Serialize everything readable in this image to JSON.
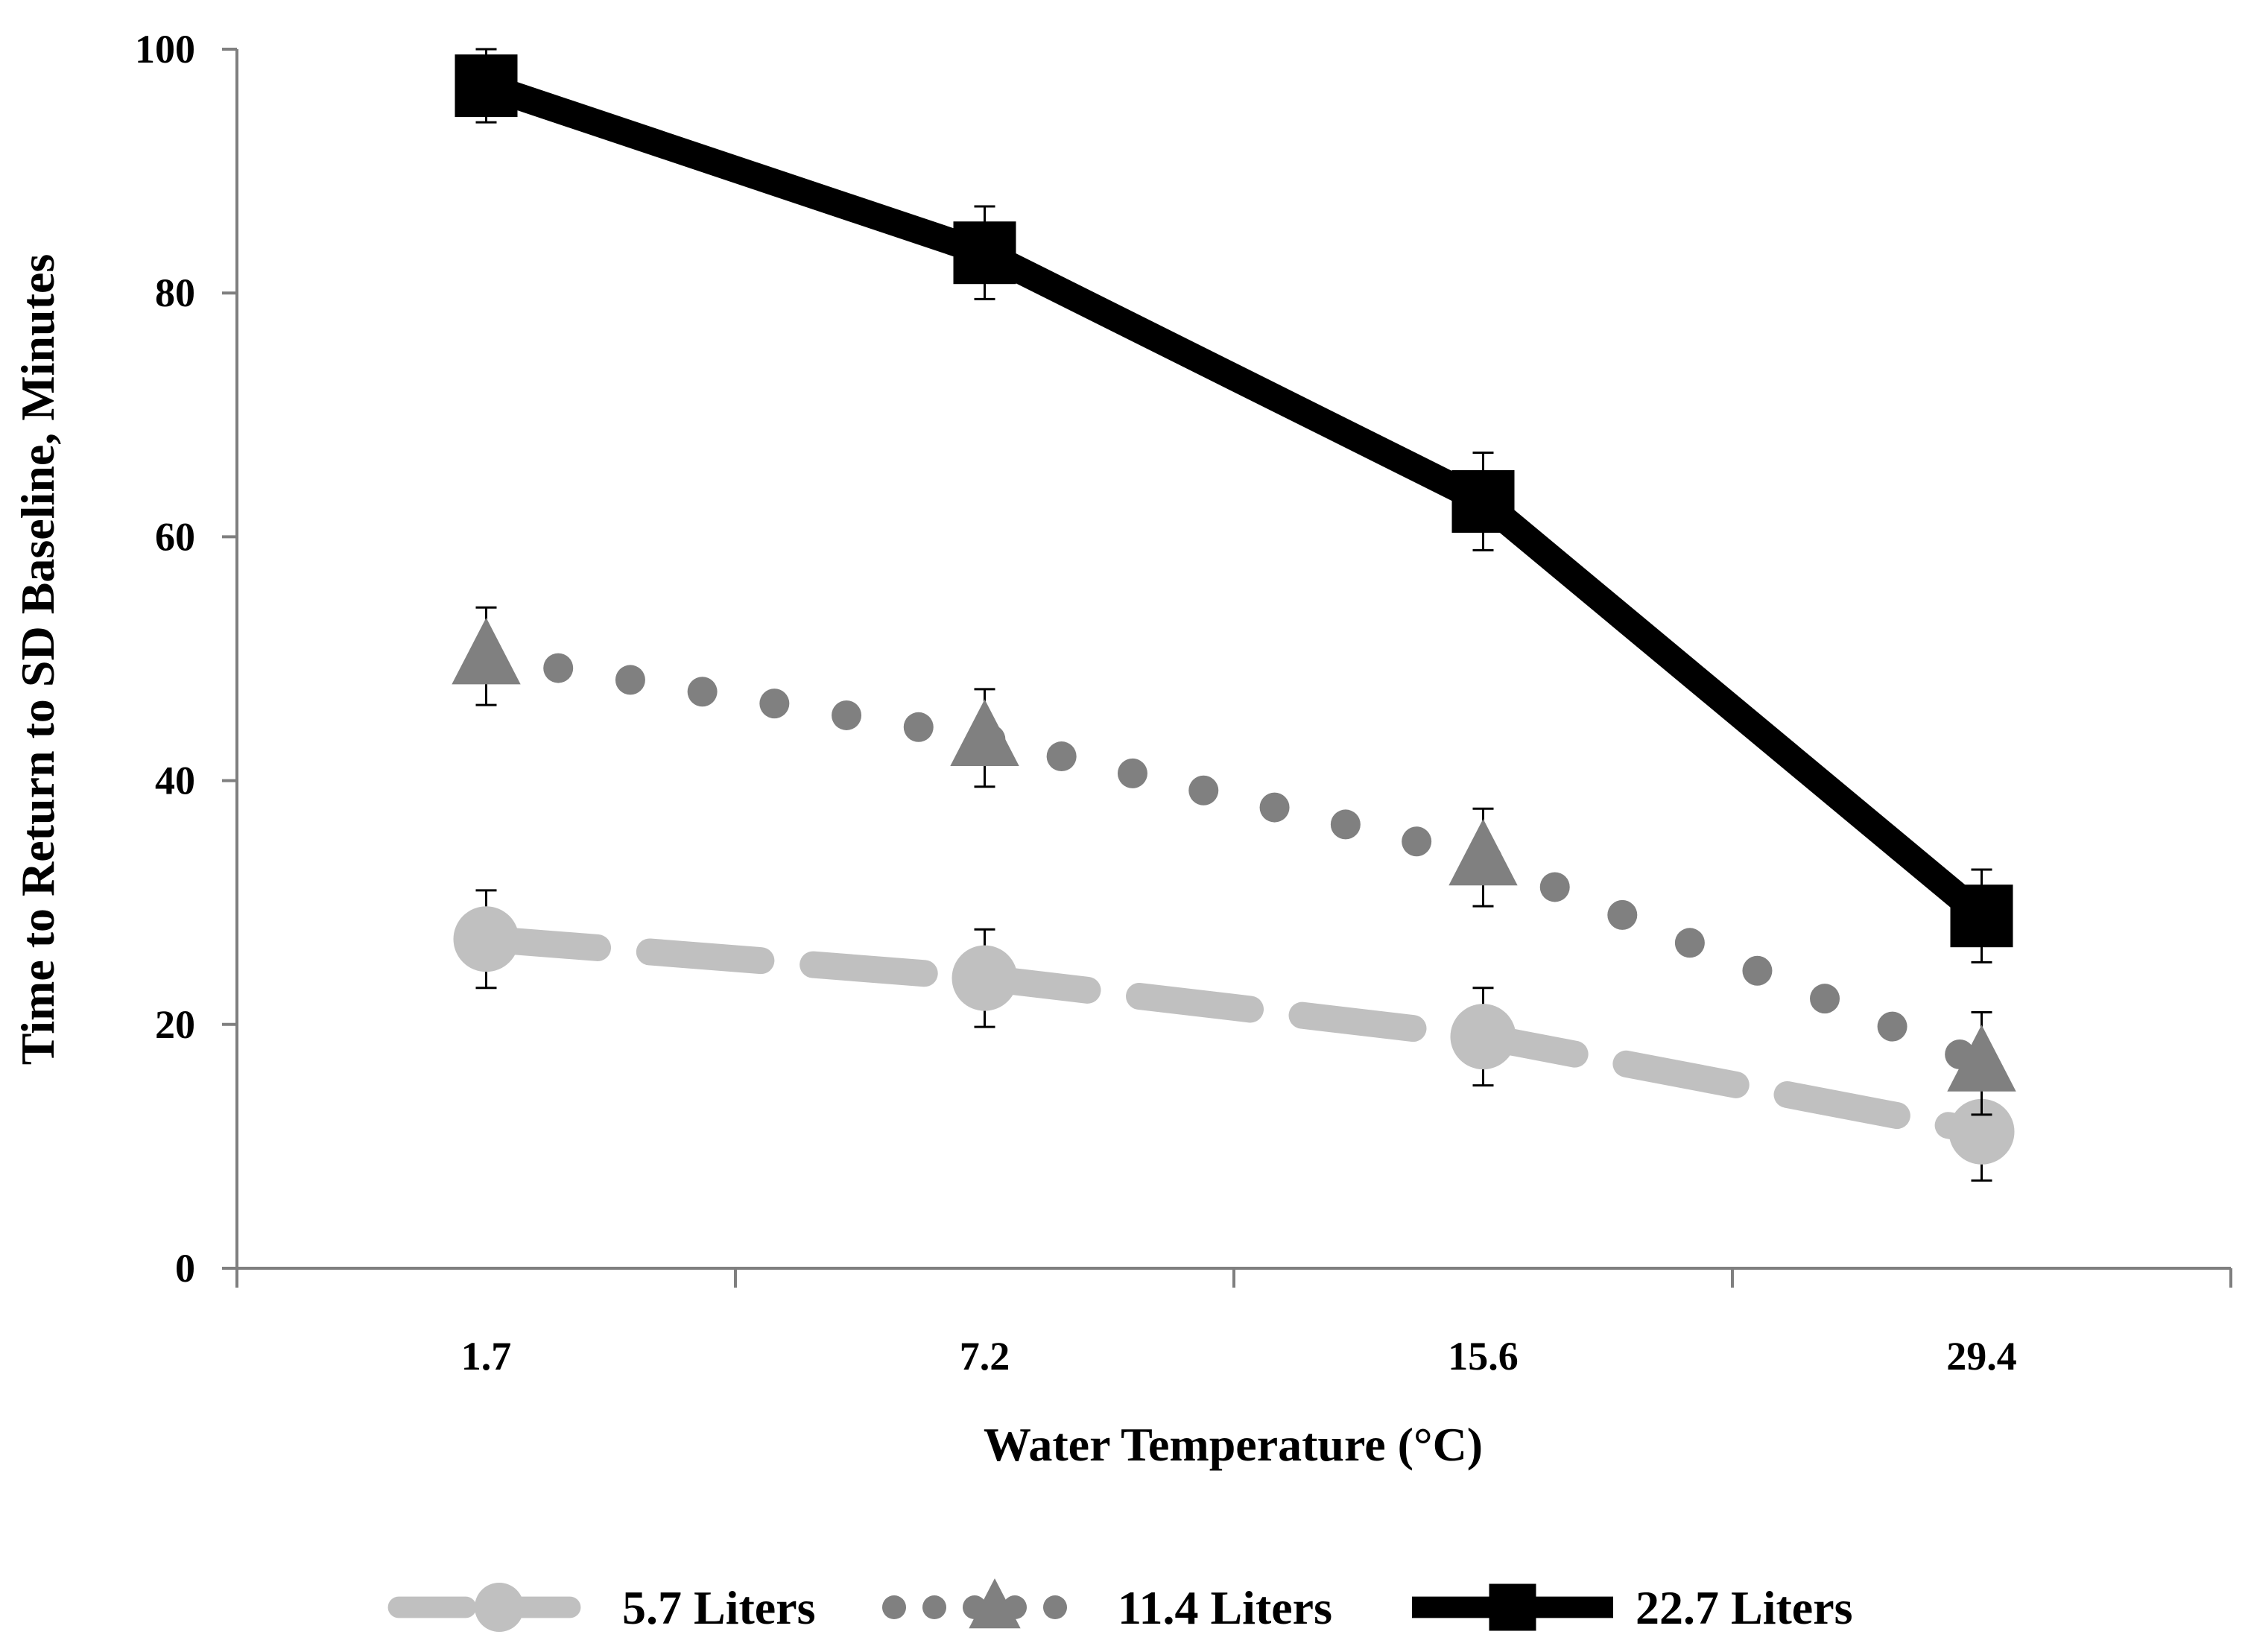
{
  "chart_data": {
    "type": "line",
    "categories": [
      "1.7",
      "7.2",
      "15.6",
      "29.4"
    ],
    "xlabel": "Water Temperature (°C)",
    "ylabel": "Time to Return to SD Baseline, Minutes",
    "ylim": [
      0,
      100
    ],
    "yticks": [
      "0",
      "20",
      "40",
      "60",
      "80",
      "100"
    ],
    "grid": false,
    "legend_position": "bottom",
    "series": [
      {
        "name": "5.7 Liters",
        "values": [
          27,
          23.8,
          19,
          11.2
        ],
        "errors": [
          4,
          4,
          4,
          4
        ],
        "color": "#c0c0c0",
        "line_style": "dashed",
        "marker": "circle"
      },
      {
        "name": "11.4 Liters",
        "values": [
          50.2,
          43.5,
          33.7,
          16.8
        ],
        "errors": [
          4,
          4,
          4,
          4.2
        ],
        "color": "#808080",
        "line_style": "dotted",
        "marker": "triangle"
      },
      {
        "name": "22.7 Liters",
        "values": [
          97,
          83.3,
          62.9,
          28.9
        ],
        "errors": [
          3,
          3.8,
          4,
          3.8
        ],
        "color": "#000000",
        "line_style": "solid",
        "marker": "square"
      }
    ]
  }
}
